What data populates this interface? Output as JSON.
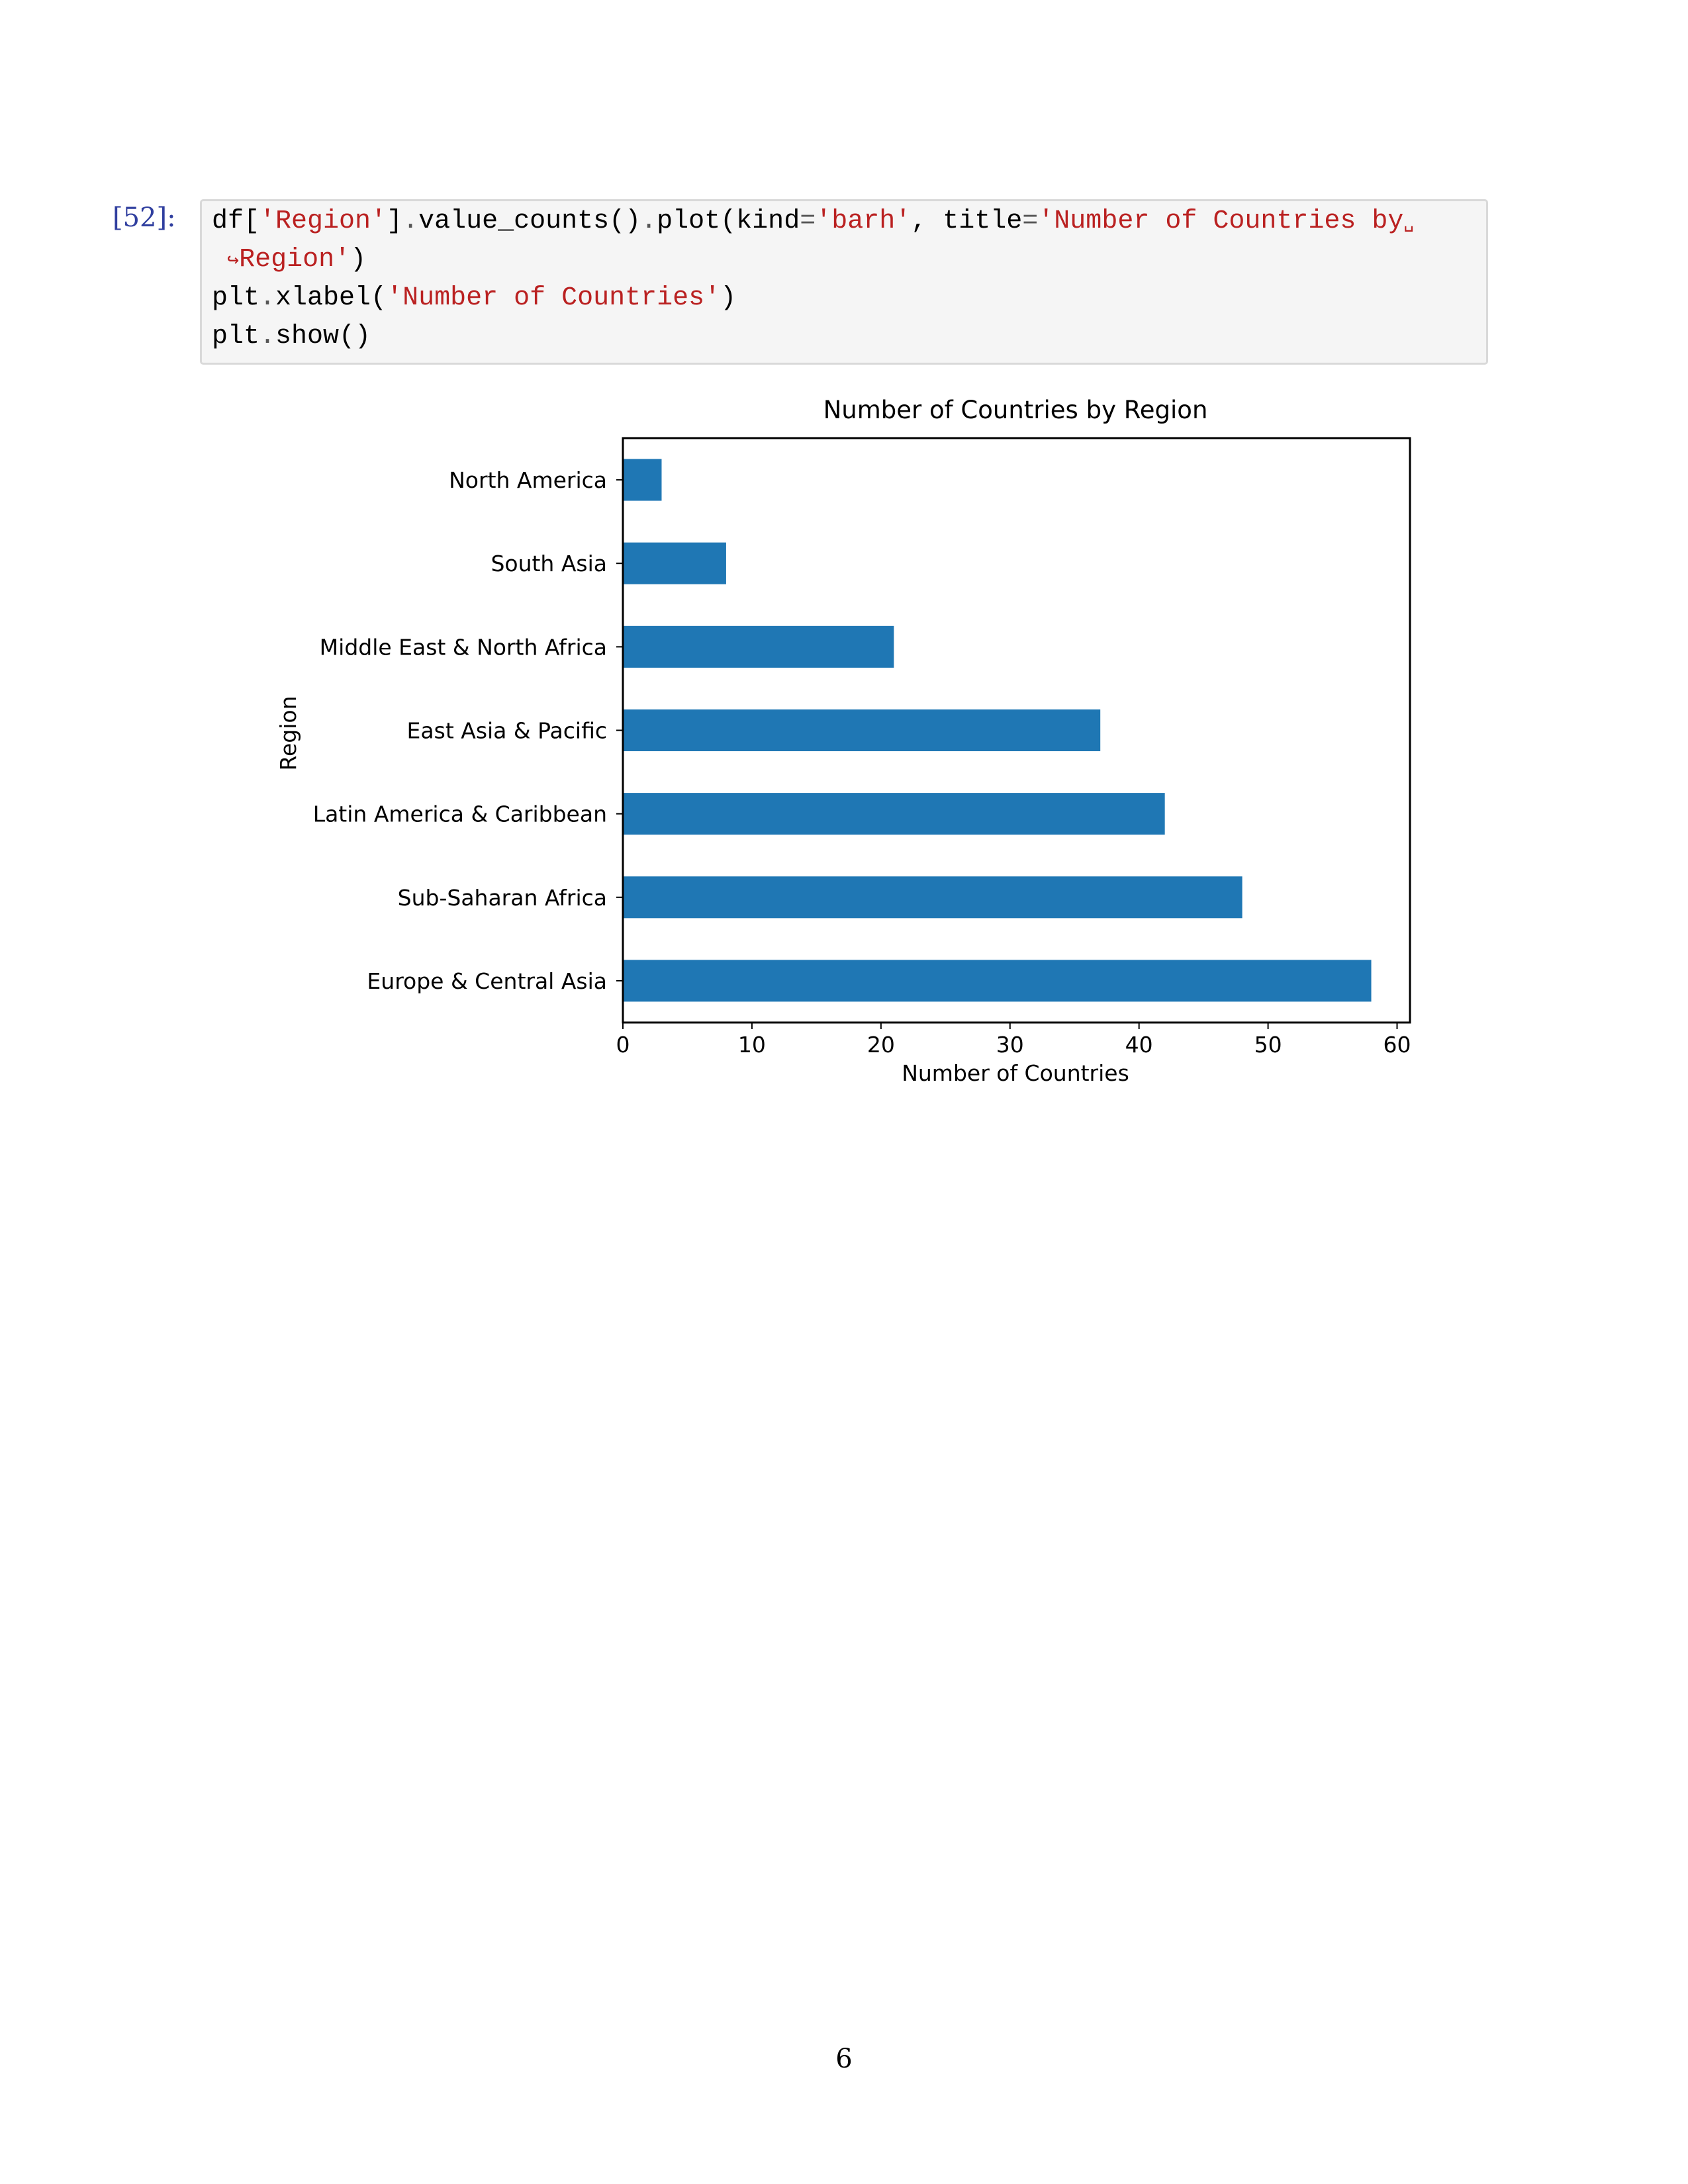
{
  "cell": {
    "prompt": "[52]:",
    "line1": {
      "a": "df[",
      "b": "'Region'",
      "c": "]",
      "d": ".",
      "e": "value_counts()",
      "f": ".",
      "g": "plot(kind",
      "h": "=",
      "i": "'barh'",
      "j": ", title",
      "k": "=",
      "l": "'Number of Countries by",
      "m": "␣"
    },
    "line2": {
      "a": "↪",
      "b": "Region'",
      "c": ")"
    },
    "line3": {
      "a": "plt",
      "b": ".",
      "c": "xlabel(",
      "d": "'Number of Countries'",
      "e": ")"
    },
    "line4": {
      "a": "plt",
      "b": ".",
      "c": "show()"
    }
  },
  "chart_data": {
    "type": "bar",
    "orientation": "horizontal",
    "title": "Number of Countries by Region",
    "xlabel": "Number of Countries",
    "ylabel": "Region",
    "categories": [
      "Europe & Central Asia",
      "Sub-Saharan Africa",
      "Latin America & Caribbean",
      "East Asia & Pacific",
      "Middle East & North Africa",
      "South Asia",
      "North America"
    ],
    "values": [
      58,
      48,
      42,
      37,
      21,
      8,
      3
    ],
    "xlim": [
      0,
      61
    ],
    "xticks": [
      0,
      10,
      20,
      30,
      40,
      50,
      60
    ],
    "grid": false,
    "color": "#1f77b4"
  },
  "page_number": "6"
}
